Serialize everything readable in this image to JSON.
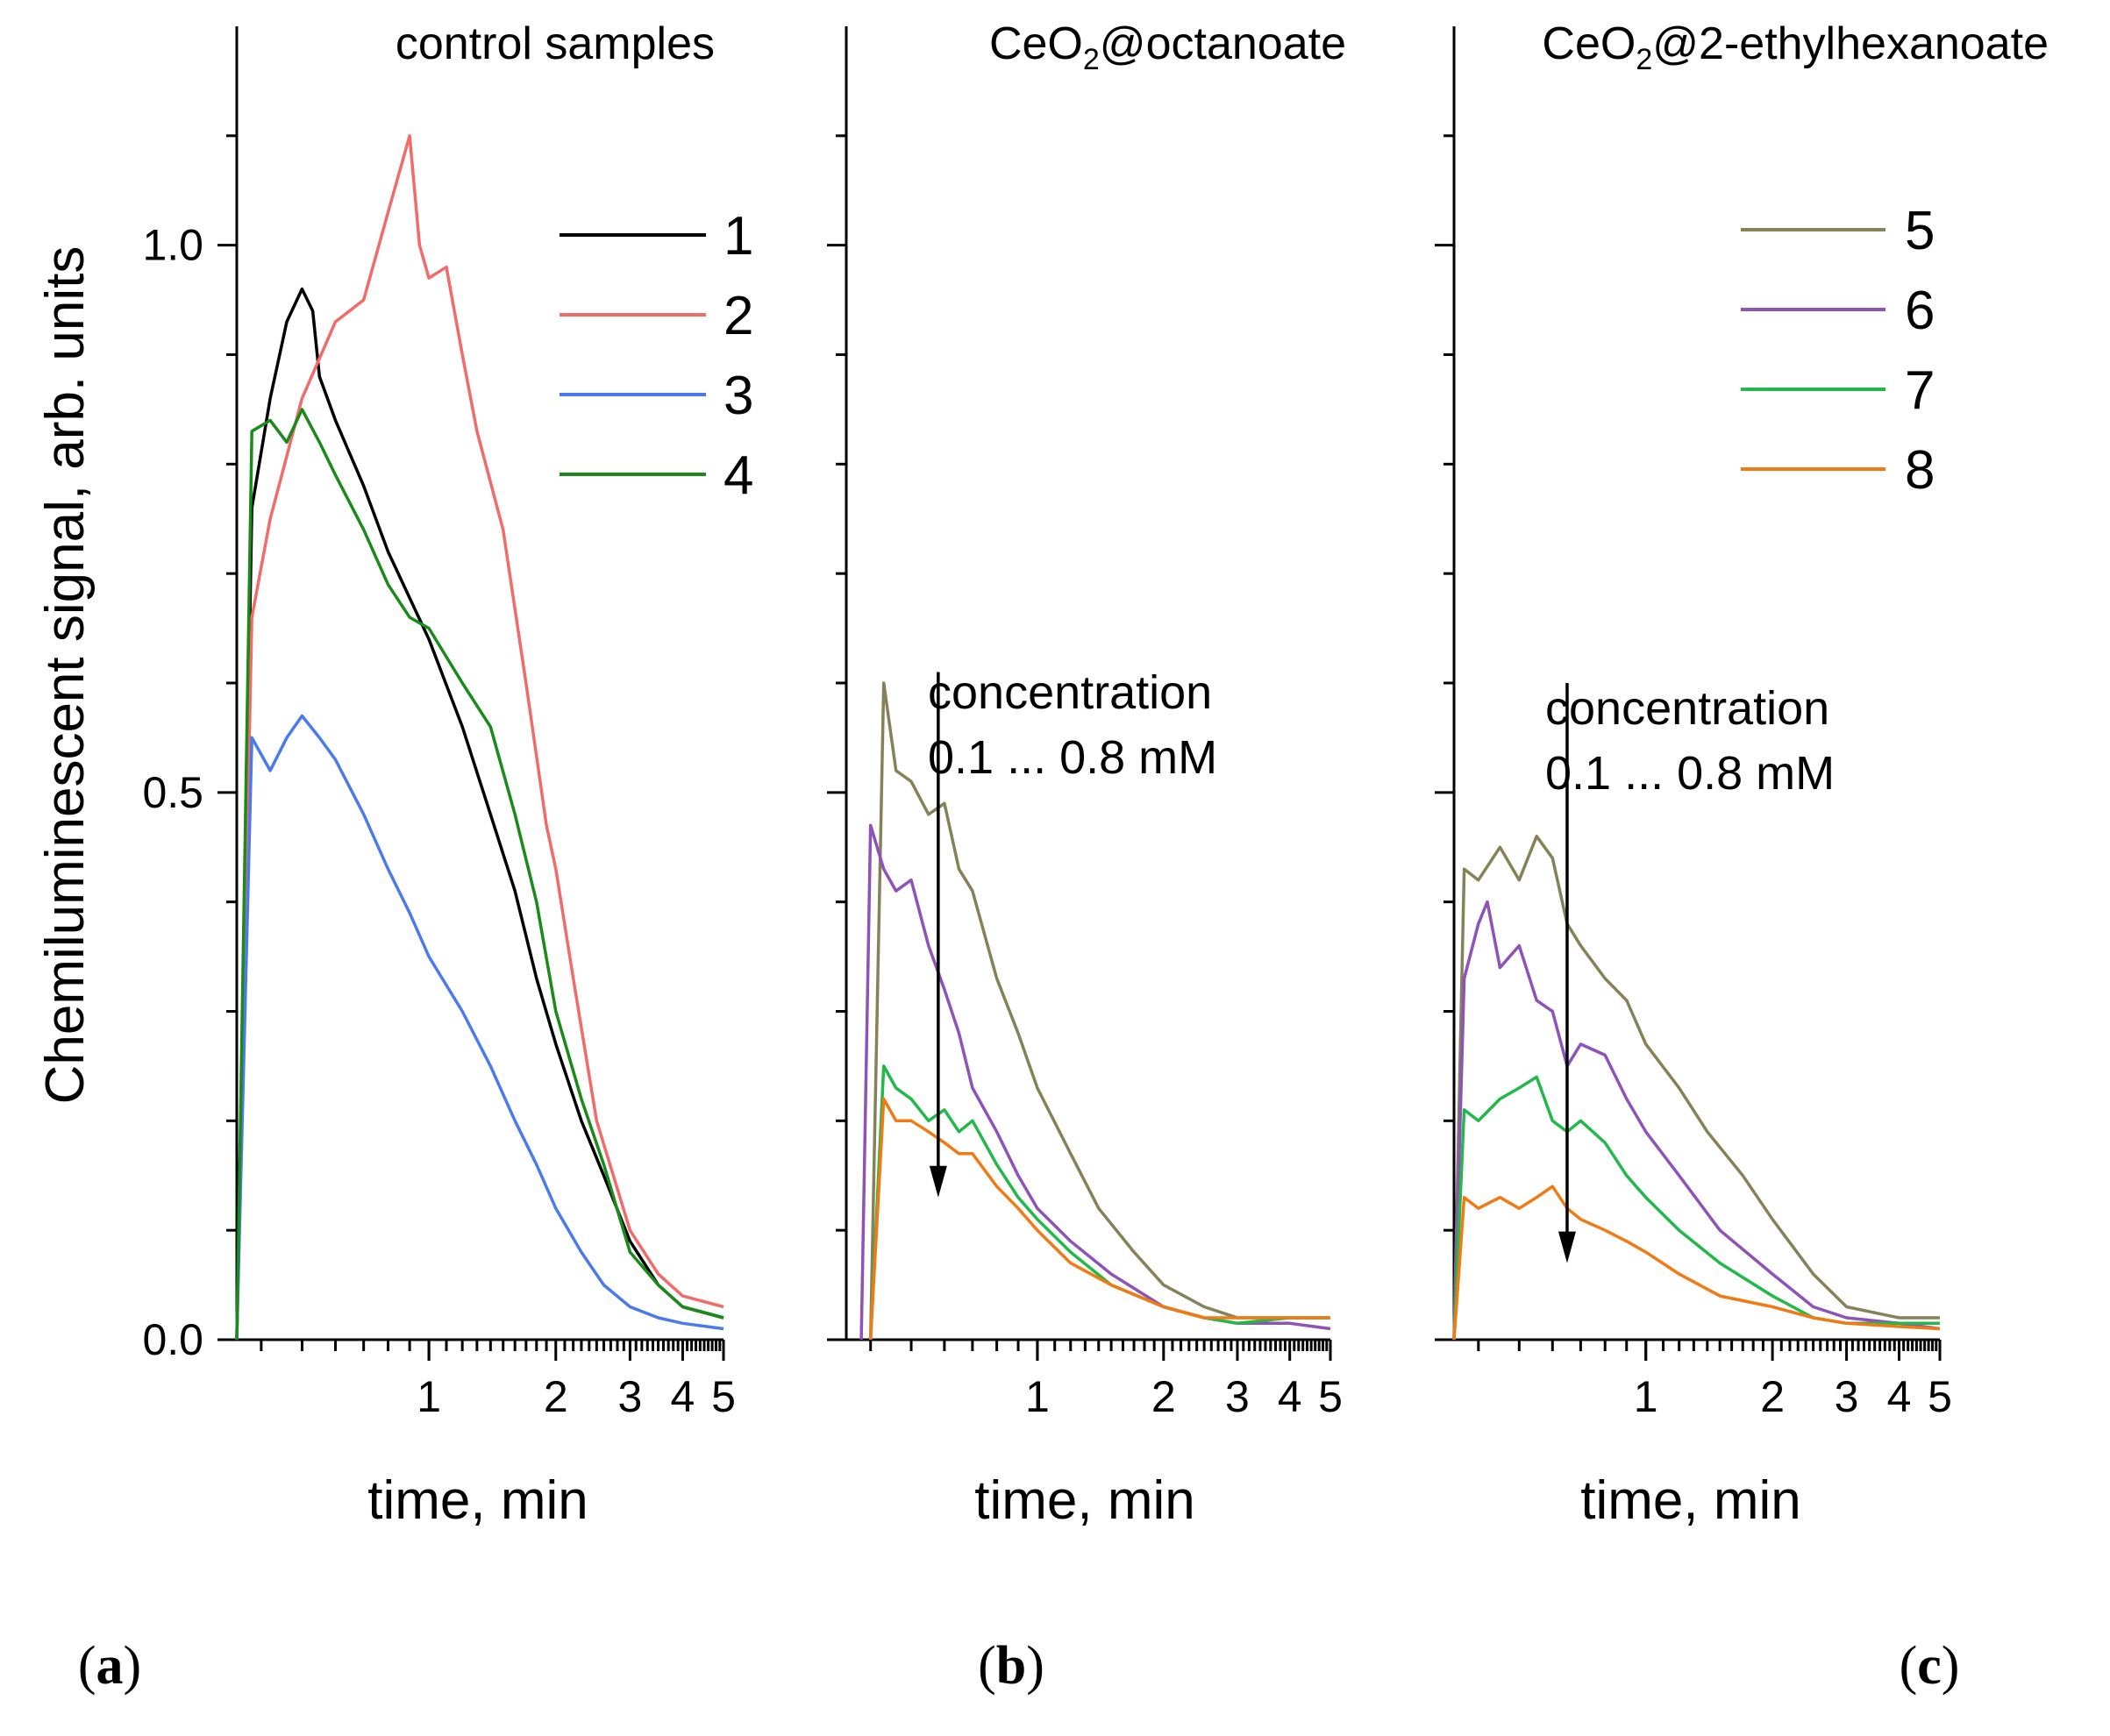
{
  "figure": {
    "y_axis_title": "Chemiluminescent signal, arb. units",
    "x_axis_title": "time, min"
  },
  "chart_data": [
    {
      "type": "line",
      "panel": "(a)",
      "title": "control samples",
      "xlabel": "time, min",
      "ylabel": "Chemiluminescent signal, arb. units",
      "x_scale": "log",
      "xlim": [
        0.35,
        5
      ],
      "ylim": [
        0,
        1.2
      ],
      "x_ticks": [
        "1",
        "2",
        "3",
        "4",
        "5"
      ],
      "y_ticks": [
        "0.0",
        "0.5",
        "1.0"
      ],
      "series": [
        {
          "name": "1",
          "color": "#000000",
          "x": [
            0.35,
            0.38,
            0.42,
            0.46,
            0.5,
            0.53,
            0.55,
            0.6,
            0.7,
            0.8,
            1.0,
            1.2,
            1.4,
            1.6,
            1.8,
            2.0,
            2.3,
            2.6,
            3.0,
            3.5,
            4.0,
            5.0
          ],
          "y": [
            0.0,
            0.76,
            0.86,
            0.93,
            0.96,
            0.94,
            0.88,
            0.84,
            0.78,
            0.72,
            0.64,
            0.56,
            0.48,
            0.41,
            0.33,
            0.27,
            0.2,
            0.15,
            0.09,
            0.05,
            0.03,
            0.02
          ]
        },
        {
          "name": "2",
          "color": "#f26b6b",
          "x": [
            0.35,
            0.38,
            0.42,
            0.5,
            0.6,
            0.7,
            0.8,
            0.9,
            0.95,
            1.0,
            1.1,
            1.2,
            1.3,
            1.5,
            1.7,
            1.9,
            2.0,
            2.2,
            2.5,
            3.0,
            3.5,
            4.0,
            5.0
          ],
          "y": [
            0.0,
            0.66,
            0.75,
            0.86,
            0.93,
            0.95,
            1.03,
            1.1,
            1.0,
            0.97,
            0.98,
            0.9,
            0.83,
            0.74,
            0.6,
            0.47,
            0.43,
            0.33,
            0.2,
            0.1,
            0.06,
            0.04,
            0.03
          ]
        },
        {
          "name": "3",
          "color": "#4a7aed",
          "x": [
            0.35,
            0.38,
            0.42,
            0.46,
            0.5,
            0.55,
            0.6,
            0.7,
            0.8,
            0.9,
            1.0,
            1.2,
            1.4,
            1.6,
            1.8,
            2.0,
            2.3,
            2.6,
            3.0,
            3.5,
            4.0,
            5.0
          ],
          "y": [
            0.0,
            0.55,
            0.52,
            0.55,
            0.57,
            0.55,
            0.53,
            0.48,
            0.43,
            0.39,
            0.35,
            0.3,
            0.25,
            0.2,
            0.16,
            0.12,
            0.08,
            0.05,
            0.03,
            0.02,
            0.015,
            0.01
          ]
        },
        {
          "name": "4",
          "color": "#1a8a1a",
          "x": [
            0.35,
            0.38,
            0.42,
            0.46,
            0.5,
            0.55,
            0.6,
            0.7,
            0.8,
            0.9,
            1.0,
            1.2,
            1.4,
            1.6,
            1.8,
            2.0,
            2.3,
            2.6,
            3.0,
            3.5,
            4.0,
            5.0
          ],
          "y": [
            0.0,
            0.83,
            0.84,
            0.82,
            0.85,
            0.82,
            0.79,
            0.74,
            0.69,
            0.66,
            0.65,
            0.6,
            0.56,
            0.48,
            0.4,
            0.3,
            0.22,
            0.16,
            0.08,
            0.05,
            0.03,
            0.02
          ]
        }
      ]
    },
    {
      "type": "line",
      "panel": "(b)",
      "title_main": "CeO",
      "title_sub": "2",
      "title_rest": "@octanoate",
      "title": "CeO2@octanoate",
      "xlabel": "time, min",
      "x_scale": "log",
      "xlim": [
        0.35,
        5
      ],
      "ylim": [
        0,
        1.2
      ],
      "x_ticks": [
        "1",
        "2",
        "3",
        "4",
        "5"
      ],
      "annotation": {
        "line1": "concentration",
        "line2": "0.1 ... 0.8 mM",
        "arrow_x": 0.58,
        "arrow_y_top": 0.61,
        "arrow_y_bottom": 0.13
      },
      "series": [
        {
          "name": "5",
          "color": "#85825a",
          "x": [
            0.4,
            0.43,
            0.46,
            0.5,
            0.55,
            0.6,
            0.65,
            0.7,
            0.8,
            0.9,
            1.0,
            1.2,
            1.4,
            1.7,
            2.0,
            2.5,
            3.0,
            4.0,
            5.0
          ],
          "y": [
            0.0,
            0.6,
            0.52,
            0.51,
            0.48,
            0.49,
            0.43,
            0.41,
            0.33,
            0.28,
            0.23,
            0.17,
            0.12,
            0.08,
            0.05,
            0.03,
            0.02,
            0.02,
            0.02
          ]
        },
        {
          "name": "6",
          "color": "#8e52b8",
          "x": [
            0.38,
            0.4,
            0.43,
            0.46,
            0.5,
            0.55,
            0.6,
            0.65,
            0.7,
            0.8,
            0.9,
            1.0,
            1.2,
            1.5,
            2.0,
            2.5,
            3.0,
            4.0,
            5.0
          ],
          "y": [
            0.0,
            0.47,
            0.43,
            0.41,
            0.42,
            0.36,
            0.32,
            0.28,
            0.23,
            0.19,
            0.15,
            0.12,
            0.09,
            0.06,
            0.03,
            0.02,
            0.015,
            0.015,
            0.01
          ]
        },
        {
          "name": "7",
          "color": "#22b84a",
          "x": [
            0.4,
            0.43,
            0.46,
            0.5,
            0.55,
            0.6,
            0.65,
            0.7,
            0.8,
            0.9,
            1.0,
            1.2,
            1.5,
            2.0,
            2.5,
            3.0,
            4.0,
            5.0
          ],
          "y": [
            0.0,
            0.25,
            0.23,
            0.22,
            0.2,
            0.21,
            0.19,
            0.2,
            0.16,
            0.13,
            0.11,
            0.08,
            0.05,
            0.03,
            0.02,
            0.015,
            0.02,
            0.02
          ]
        },
        {
          "name": "8",
          "color": "#f27a14",
          "x": [
            0.4,
            0.43,
            0.46,
            0.5,
            0.55,
            0.6,
            0.65,
            0.7,
            0.8,
            0.9,
            1.0,
            1.2,
            1.5,
            2.0,
            2.5,
            3.0,
            4.0,
            5.0
          ],
          "y": [
            0.0,
            0.22,
            0.2,
            0.2,
            0.19,
            0.18,
            0.17,
            0.17,
            0.14,
            0.12,
            0.1,
            0.07,
            0.05,
            0.03,
            0.02,
            0.02,
            0.02,
            0.02
          ]
        }
      ]
    },
    {
      "type": "line",
      "panel": "(c)",
      "title_main": "CeO",
      "title_sub": "2",
      "title_rest": "@2-ethylhexanoate",
      "title": "CeO2@2-ethylhexanoate",
      "xlabel": "time, min",
      "x_scale": "log",
      "xlim": [
        0.35,
        5
      ],
      "ylim": [
        0,
        1.2
      ],
      "x_ticks": [
        "1",
        "2",
        "3",
        "4",
        "5"
      ],
      "annotation": {
        "line1": "concentration",
        "line2": "0.1 ... 0.8 mM",
        "arrow_x": 0.65,
        "arrow_y_top": 0.6,
        "arrow_y_bottom": 0.07
      },
      "series": [
        {
          "name": "5",
          "color": "#85825a",
          "x": [
            0.35,
            0.37,
            0.4,
            0.45,
            0.5,
            0.55,
            0.6,
            0.65,
            0.7,
            0.8,
            0.9,
            1.0,
            1.2,
            1.4,
            1.7,
            2.0,
            2.5,
            3.0,
            4.0,
            5.0
          ],
          "y": [
            0.0,
            0.43,
            0.42,
            0.45,
            0.42,
            0.46,
            0.44,
            0.38,
            0.36,
            0.33,
            0.31,
            0.27,
            0.23,
            0.19,
            0.15,
            0.11,
            0.06,
            0.03,
            0.02,
            0.02
          ]
        },
        {
          "name": "6",
          "color": "#8e52b8",
          "x": [
            0.35,
            0.37,
            0.4,
            0.42,
            0.45,
            0.5,
            0.55,
            0.6,
            0.65,
            0.7,
            0.8,
            0.9,
            1.0,
            1.2,
            1.5,
            2.0,
            2.5,
            3.0,
            4.0,
            5.0
          ],
          "y": [
            0.0,
            0.33,
            0.38,
            0.4,
            0.34,
            0.36,
            0.31,
            0.3,
            0.25,
            0.27,
            0.26,
            0.22,
            0.19,
            0.15,
            0.1,
            0.06,
            0.03,
            0.02,
            0.015,
            0.01
          ]
        },
        {
          "name": "7",
          "color": "#22b84a",
          "x": [
            0.35,
            0.37,
            0.4,
            0.45,
            0.5,
            0.55,
            0.6,
            0.65,
            0.7,
            0.8,
            0.9,
            1.0,
            1.2,
            1.5,
            2.0,
            2.5,
            3.0,
            4.0,
            5.0
          ],
          "y": [
            0.0,
            0.21,
            0.2,
            0.22,
            0.23,
            0.24,
            0.2,
            0.19,
            0.2,
            0.18,
            0.15,
            0.13,
            0.1,
            0.07,
            0.04,
            0.02,
            0.015,
            0.015,
            0.015
          ]
        },
        {
          "name": "8",
          "color": "#f27a14",
          "x": [
            0.35,
            0.37,
            0.4,
            0.45,
            0.5,
            0.55,
            0.6,
            0.65,
            0.7,
            0.8,
            0.9,
            1.0,
            1.2,
            1.5,
            2.0,
            2.5,
            3.0,
            4.0,
            5.0
          ],
          "y": [
            0.0,
            0.13,
            0.12,
            0.13,
            0.12,
            0.13,
            0.14,
            0.12,
            0.11,
            0.1,
            0.09,
            0.08,
            0.06,
            0.04,
            0.03,
            0.02,
            0.015,
            0.012,
            0.01
          ]
        }
      ]
    }
  ]
}
